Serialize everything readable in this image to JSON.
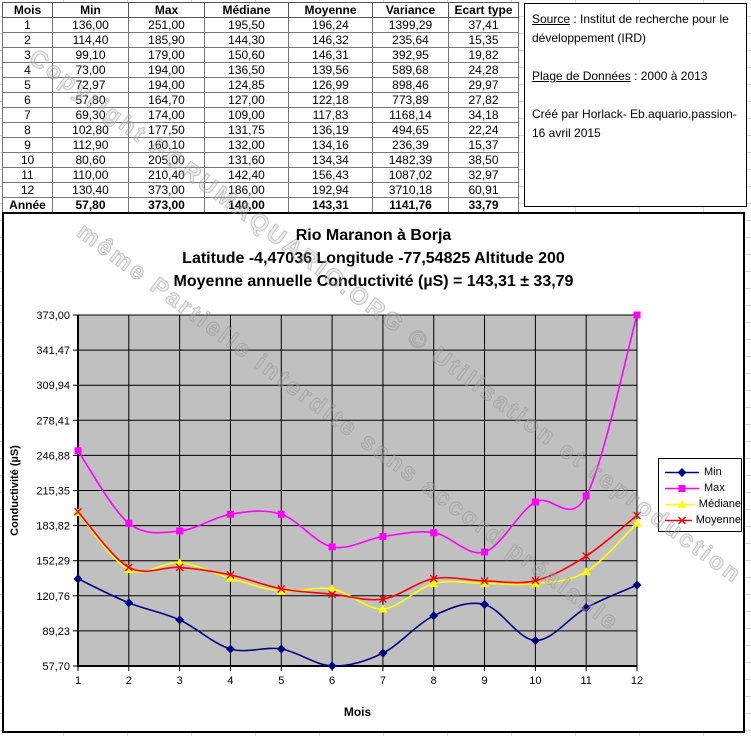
{
  "table": {
    "columns": [
      "Mois",
      "Min",
      "Max",
      "Médiane",
      "Moyenne",
      "Variance",
      "Ecart type"
    ],
    "rows": [
      [
        "1",
        "136,00",
        "251,00",
        "195,50",
        "196,24",
        "1399,29",
        "37,41"
      ],
      [
        "2",
        "114,40",
        "185,90",
        "144,30",
        "146,32",
        "235,64",
        "15,35"
      ],
      [
        "3",
        "99,10",
        "179,00",
        "150,60",
        "146,31",
        "392,95",
        "19,82"
      ],
      [
        "4",
        "73,00",
        "194,00",
        "136,50",
        "139,56",
        "589,68",
        "24,28"
      ],
      [
        "5",
        "72,97",
        "194,00",
        "124,85",
        "126,99",
        "898,46",
        "29,97"
      ],
      [
        "6",
        "57,80",
        "164,70",
        "127,00",
        "122,18",
        "773,89",
        "27,82"
      ],
      [
        "7",
        "69,30",
        "174,00",
        "109,00",
        "117,83",
        "1168,14",
        "34,18"
      ],
      [
        "8",
        "102,80",
        "177,50",
        "131,75",
        "136,19",
        "494,65",
        "22,24"
      ],
      [
        "9",
        "112,90",
        "160,10",
        "132,00",
        "134,16",
        "236,39",
        "15,37"
      ],
      [
        "10",
        "80,60",
        "205,00",
        "131,60",
        "134,34",
        "1482,39",
        "38,50"
      ],
      [
        "11",
        "110,00",
        "210,40",
        "142,40",
        "156,43",
        "1087,02",
        "32,97"
      ],
      [
        "12",
        "130,40",
        "373,00",
        "186,00",
        "192,94",
        "3710,18",
        "60,91"
      ]
    ],
    "annual_row": [
      "Année",
      "57,80",
      "373,00",
      "140,00",
      "143,31",
      "1141,76",
      "33,79"
    ]
  },
  "info_box": {
    "source_label": "Source",
    "source_text": " : Institut de recherche pour le développement (IRD)",
    "plage_label": "Plage de Données",
    "plage_text": " : 2000 à 2013",
    "credit_text": "Créé par Horlack- Eb.aquario.passion- 16 avril 2015"
  },
  "watermark": {
    "line1": "Copyright FORUMAQUARIO.ORG © Utilisation et reproduction",
    "line2": "même Partielle interdite sans accord préalable"
  },
  "chart_data": {
    "type": "line",
    "title_lines": [
      "Rio Maranon à Borja",
      "Latitude -4,47036 Longitude -77,54825 Altitude 200",
      "Moyenne annuelle Conductivité (µS) = 143,31 ± 33,79"
    ],
    "xlabel": "Mois",
    "ylabel": "Conductivité (µS)",
    "x": [
      1,
      2,
      3,
      4,
      5,
      6,
      7,
      8,
      9,
      10,
      11,
      12
    ],
    "x_tick_labels": [
      "1",
      "2",
      "3",
      "4",
      "5",
      "6",
      "7",
      "8",
      "9",
      "10",
      "11",
      "12"
    ],
    "y_ticks": [
      57.7,
      89.23,
      120.76,
      152.29,
      183.82,
      215.35,
      246.88,
      278.41,
      309.94,
      341.47,
      373.0
    ],
    "y_tick_labels": [
      "57,70",
      "89,23",
      "120,76",
      "152,29",
      "183,82",
      "215,35",
      "246,88",
      "278,41",
      "309,94",
      "341,47",
      "373,00"
    ],
    "ylim": [
      57.7,
      373.0
    ],
    "grid": true,
    "smoothed_lines": true,
    "plot_bg": "#C0C0C0",
    "gridline_color": "#000000",
    "legend_position": "right",
    "series": [
      {
        "name": "Min",
        "color": "#000080",
        "marker": "diamond",
        "values": [
          136.0,
          114.4,
          99.1,
          73.0,
          72.97,
          57.8,
          69.3,
          102.8,
          112.9,
          80.6,
          110.0,
          130.4
        ]
      },
      {
        "name": "Max",
        "color": "#FF00FF",
        "marker": "square",
        "values": [
          251.0,
          185.9,
          179.0,
          194.0,
          194.0,
          164.7,
          174.0,
          177.5,
          160.1,
          205.0,
          210.4,
          373.0
        ]
      },
      {
        "name": "Médiane",
        "color": "#FFFF00",
        "marker": "triangle",
        "values": [
          195.5,
          144.3,
          150.6,
          136.5,
          124.85,
          127.0,
          109.0,
          131.75,
          132.0,
          131.6,
          142.4,
          186.0
        ]
      },
      {
        "name": "Moyenne",
        "color": "#FF0000",
        "marker": "x",
        "values": [
          196.24,
          146.32,
          146.31,
          139.56,
          126.99,
          122.18,
          117.83,
          136.19,
          134.16,
          134.34,
          156.43,
          192.94
        ]
      }
    ]
  }
}
